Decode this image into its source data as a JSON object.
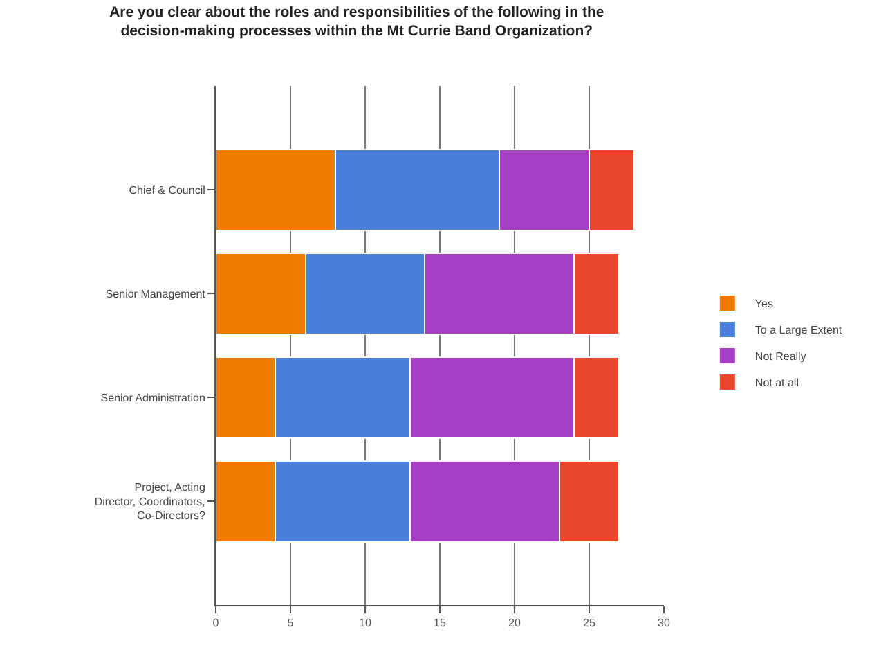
{
  "chart_data": {
    "type": "bar",
    "orientation": "horizontal",
    "stacked": true,
    "title": "Are you clear about the roles and responsibilities of the following in the decision-making processes within the Mt Currie Band Organization?",
    "categories": [
      "Chief & Council",
      "Senior Management",
      "Senior Administration",
      "Project, Acting Director, Coordinators, Co-Directors?"
    ],
    "series": [
      {
        "name": "Yes",
        "color": "#f07a00",
        "values": [
          8,
          6,
          4,
          4
        ]
      },
      {
        "name": "To a Large Extent",
        "color": "#4a7fdb",
        "values": [
          11,
          8,
          9,
          9
        ]
      },
      {
        "name": "Not Really",
        "color": "#a63fc6",
        "values": [
          6,
          10,
          11,
          10
        ]
      },
      {
        "name": "Not at all",
        "color": "#e8472b",
        "values": [
          3,
          3,
          3,
          4
        ]
      }
    ],
    "xlim": [
      0,
      30
    ],
    "xticks": [
      0,
      5,
      10,
      15,
      20,
      25,
      30
    ],
    "grid": "x",
    "legend": "right"
  }
}
